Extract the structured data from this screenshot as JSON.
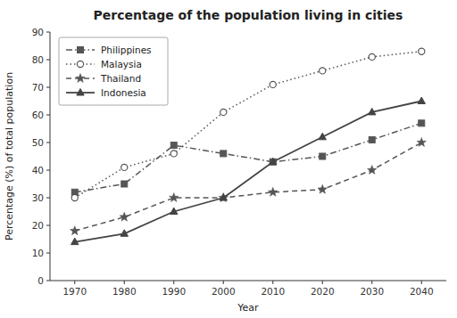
{
  "chart_data": {
    "type": "line",
    "title": "Percentage of the population living in cities",
    "x_label": "Year",
    "y_label": "Percentage (%) of total population",
    "x": [
      1970,
      1980,
      1990,
      2000,
      2010,
      2020,
      2030,
      2040
    ],
    "series": [
      {
        "name": "Philippines",
        "color": "#555555",
        "line_style": "dashdot",
        "marker": "square",
        "values": [
          32,
          35,
          49,
          46,
          43,
          45,
          51,
          57
        ]
      },
      {
        "name": "Malaysia",
        "color": "#555555",
        "line_style": "dotted",
        "marker": "circle",
        "values": [
          30,
          41,
          46,
          61,
          71,
          76,
          81,
          83
        ]
      },
      {
        "name": "Thailand",
        "color": "#555555",
        "line_style": "dashed",
        "marker": "star",
        "values": [
          18,
          23,
          30,
          30,
          32,
          33,
          40,
          50
        ]
      },
      {
        "name": "Indonesia",
        "color": "#444444",
        "line_style": "solid",
        "marker": "triangle",
        "values": [
          14,
          17,
          25,
          30,
          43,
          52,
          61,
          65
        ]
      }
    ],
    "xlim": [
      1965,
      2045
    ],
    "xticks": [
      1970,
      1980,
      1990,
      2000,
      2010,
      2020,
      2030,
      2040
    ],
    "ylim": [
      0,
      90
    ],
    "yticks": [
      0,
      10,
      20,
      30,
      40,
      50,
      60,
      70,
      80,
      90
    ],
    "grid": false,
    "legend": "upper left"
  }
}
